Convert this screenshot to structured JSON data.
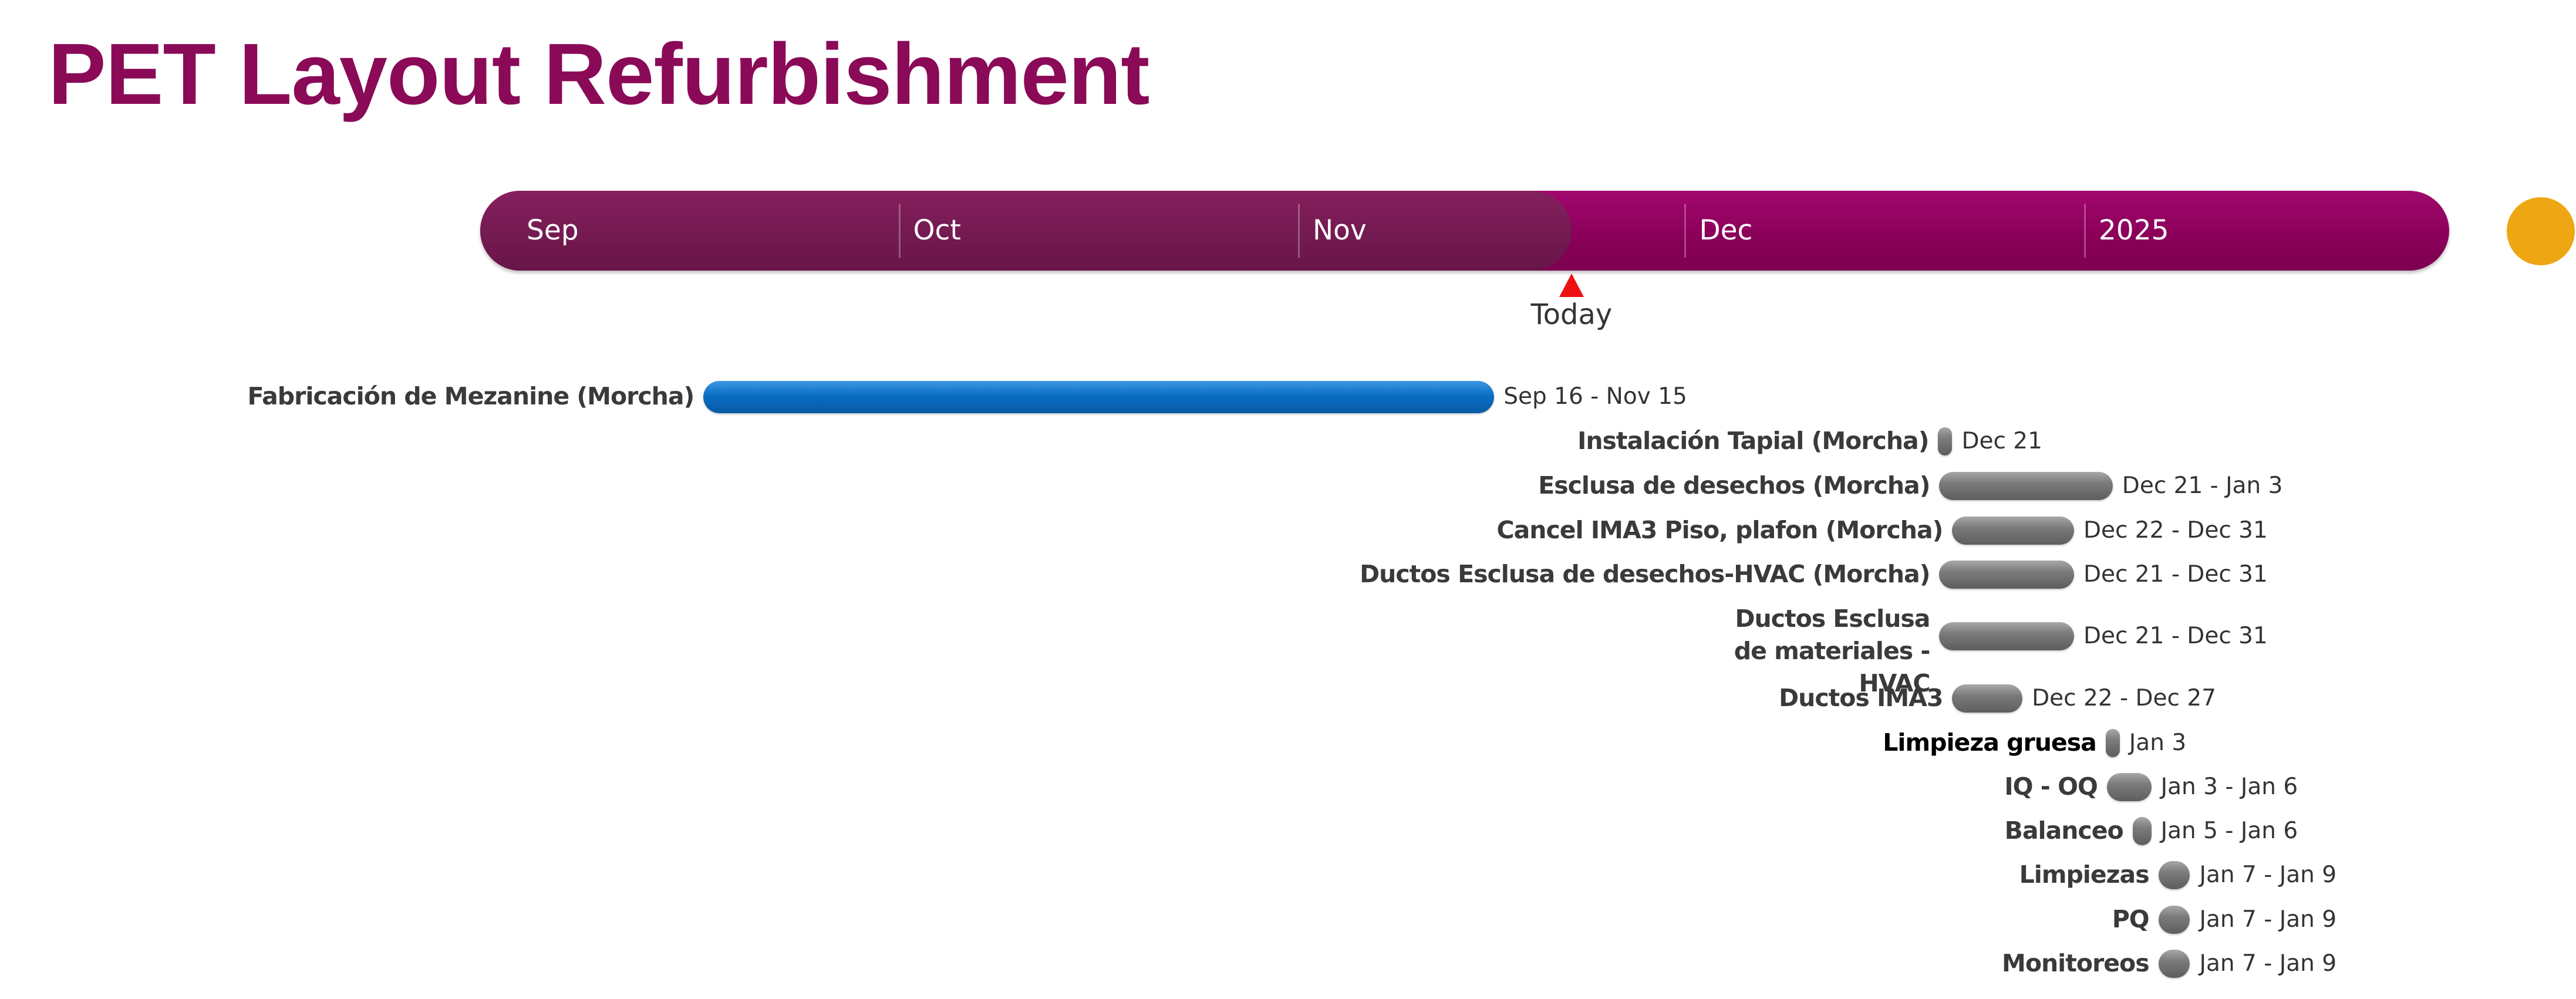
{
  "chart_data": {
    "type": "gantt",
    "title": "PET Layout Refurbishment",
    "timescale": {
      "labels": [
        {
          "text": "Sep",
          "date": "2024-09-01"
        },
        {
          "text": "Oct",
          "date": "2024-10-01"
        },
        {
          "text": "Nov",
          "date": "2024-11-01"
        },
        {
          "text": "Dec",
          "date": "2024-12-01"
        },
        {
          "text": "2025",
          "date": "2025-01-01"
        }
      ],
      "start": "2024-08-21",
      "end": "2025-01-13"
    },
    "today": {
      "label": "Today",
      "date": "2024-11-22"
    },
    "colors": {
      "title": "#8a0a58",
      "band": "#8b005a",
      "band_past": "#741a52",
      "today_marker": "#ee1111",
      "end_dot": "#eea712",
      "blue_bar": "#0a6ec3",
      "gray_bar": "#7a7a7a"
    },
    "tasks": [
      {
        "name": "Fabricación de Mezanine (Morcha)",
        "start": "2024-09-16",
        "end": "2024-11-15",
        "date_label": "Sep 16 - Nov 15",
        "color": "blue"
      },
      {
        "name": "Instalación Tapial (Morcha)",
        "start": "2024-12-21",
        "end": "2024-12-21",
        "date_label": "Dec 21",
        "color": "gray"
      },
      {
        "name": "Esclusa de desechos (Morcha)",
        "start": "2024-12-21",
        "end": "2025-01-03",
        "date_label": "Dec 21 - Jan 3",
        "color": "gray"
      },
      {
        "name": "Cancel IMA3 Piso, plafon (Morcha)",
        "start": "2024-12-22",
        "end": "2024-12-31",
        "date_label": "Dec 22 - Dec 31",
        "color": "gray"
      },
      {
        "name": "Ductos Esclusa de desechos-HVAC (Morcha)",
        "start": "2024-12-21",
        "end": "2024-12-31",
        "date_label": "Dec 21 - Dec 31",
        "color": "gray"
      },
      {
        "name": "Ductos Esclusa de materiales - HVAC",
        "start": "2024-12-21",
        "end": "2024-12-31",
        "date_label": "Dec 21 - Dec 31",
        "color": "gray"
      },
      {
        "name": "Ductos IMA3",
        "start": "2024-12-22",
        "end": "2024-12-27",
        "date_label": "Dec 22 - Dec 27",
        "color": "gray"
      },
      {
        "name": "Limpieza gruesa",
        "start": "2025-01-03",
        "end": "2025-01-03",
        "date_label": "Jan 3",
        "color": "gray",
        "label_color": "black"
      },
      {
        "name": "IQ - OQ",
        "start": "2025-01-03",
        "end": "2025-01-06",
        "date_label": "Jan 3 - Jan 6",
        "color": "gray"
      },
      {
        "name": "Balanceo",
        "start": "2025-01-05",
        "end": "2025-01-06",
        "date_label": "Jan 5 - Jan 6",
        "color": "gray"
      },
      {
        "name": "Limpiezas",
        "start": "2025-01-07",
        "end": "2025-01-09",
        "date_label": "Jan 7 - Jan 9",
        "color": "gray"
      },
      {
        "name": "PQ",
        "start": "2025-01-07",
        "end": "2025-01-09",
        "date_label": "Jan 7 - Jan 9",
        "color": "gray"
      },
      {
        "name": "Monitoreos",
        "start": "2025-01-07",
        "end": "2025-01-09",
        "date_label": "Jan 7 - Jan 9",
        "color": "gray"
      }
    ]
  }
}
